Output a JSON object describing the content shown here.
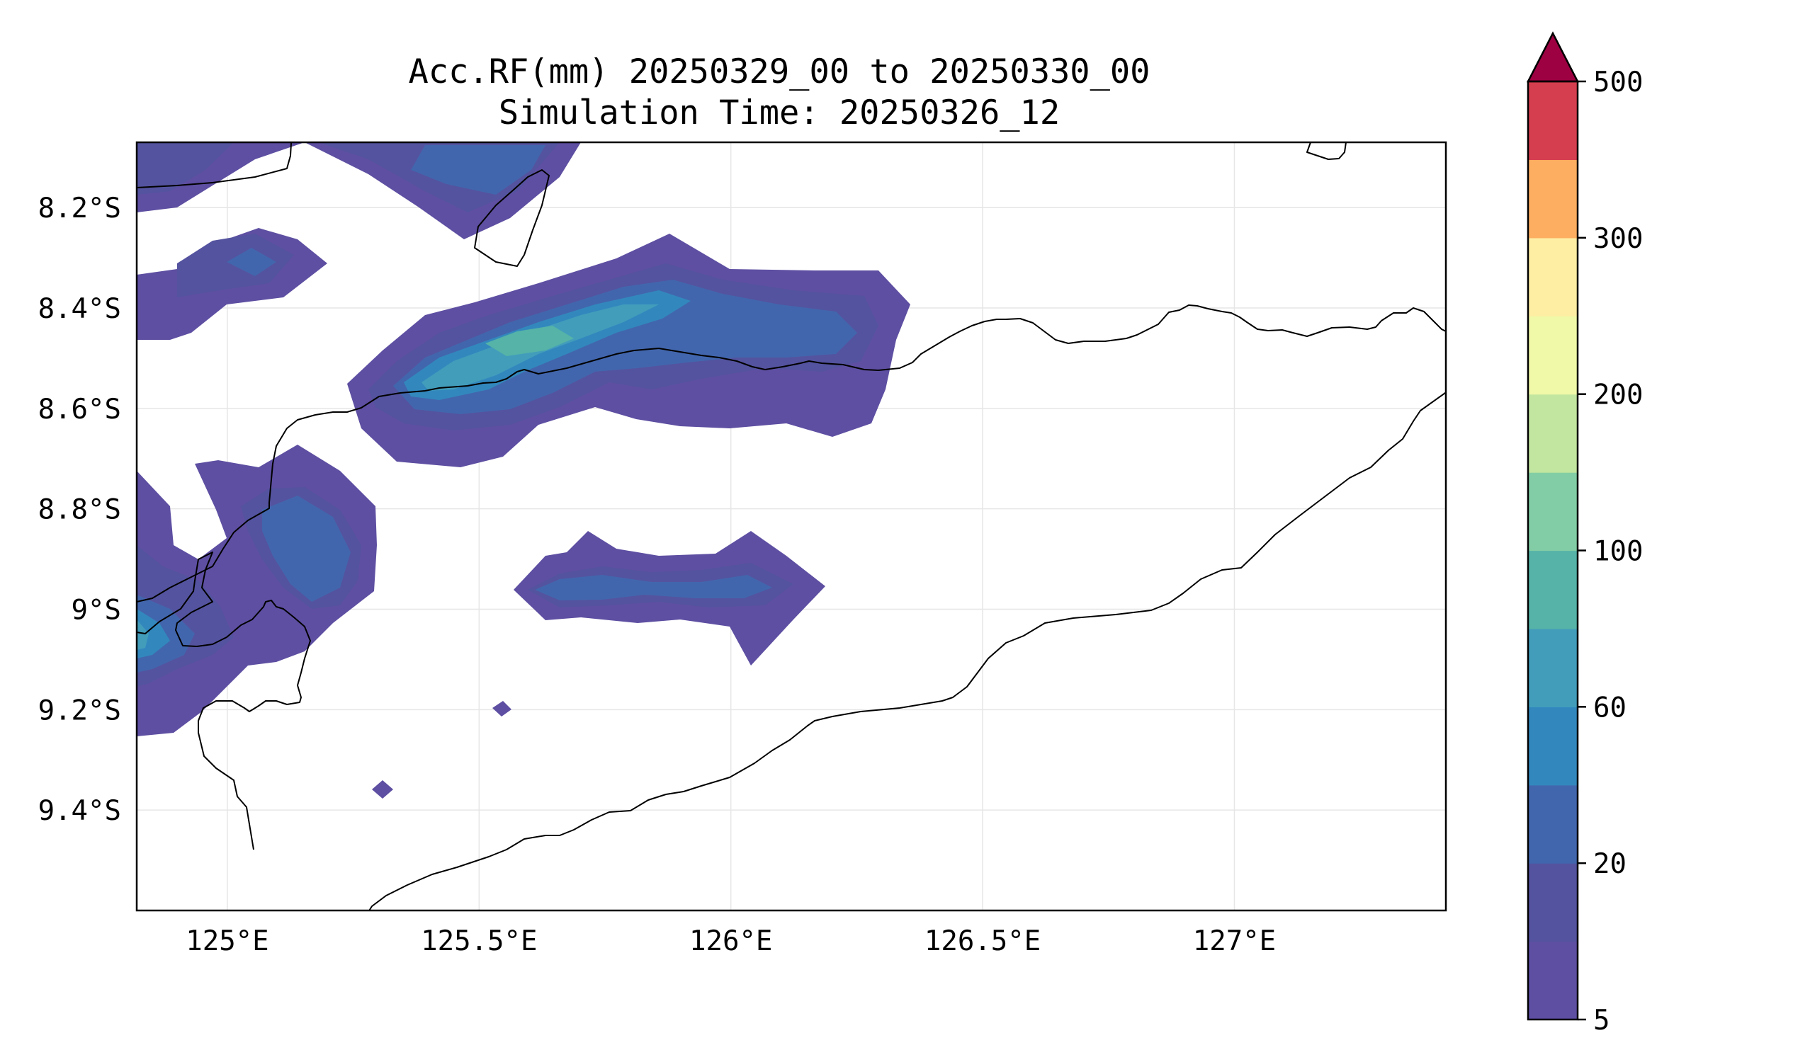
{
  "title": {
    "line1": "Acc.RF(mm) 20250329_00 to 20250330_00",
    "line2": "Simulation Time: 20250326_12"
  },
  "map": {
    "lon_range": [
      124.82,
      127.42
    ],
    "lat_range": [
      -9.6,
      -8.07
    ],
    "x_ticks": [
      {
        "value": 125.0,
        "label": "125°E"
      },
      {
        "value": 125.5,
        "label": "125.5°E"
      },
      {
        "value": 126.0,
        "label": "126°E"
      },
      {
        "value": 126.5,
        "label": "126.5°E"
      },
      {
        "value": 127.0,
        "label": "127°E"
      }
    ],
    "y_ticks": [
      {
        "value": -8.2,
        "label": "8.2°S"
      },
      {
        "value": -8.4,
        "label": "8.4°S"
      },
      {
        "value": -8.6,
        "label": "8.6°S"
      },
      {
        "value": -8.8,
        "label": "8.8°S"
      },
      {
        "value": -9.0,
        "label": "9°S"
      },
      {
        "value": -9.2,
        "label": "9.2°S"
      },
      {
        "value": -9.4,
        "label": "9.4°S"
      }
    ],
    "grid": true
  },
  "colorbar": {
    "extend": "max",
    "extend_color": "#9e0142",
    "levels": [
      {
        "label": "5",
        "color": "#5e4fa2"
      },
      {
        "label": "",
        "color": "#54539f"
      },
      {
        "label": "20",
        "color": "#4266ad"
      },
      {
        "label": "",
        "color": "#3288bd"
      },
      {
        "label": "60",
        "color": "#429dbb"
      },
      {
        "label": "",
        "color": "#55b3a8"
      },
      {
        "label": "100",
        "color": "#82cda5"
      },
      {
        "label": "",
        "color": "#c2e69f"
      },
      {
        "label": "200",
        "color": "#f0f9a8"
      },
      {
        "label": "",
        "color": "#fdeea4"
      },
      {
        "label": "300",
        "color": "#fdae61"
      },
      {
        "label": "",
        "color": "#d53e4f"
      },
      {
        "label": "500",
        "color": ""
      }
    ]
  }
}
